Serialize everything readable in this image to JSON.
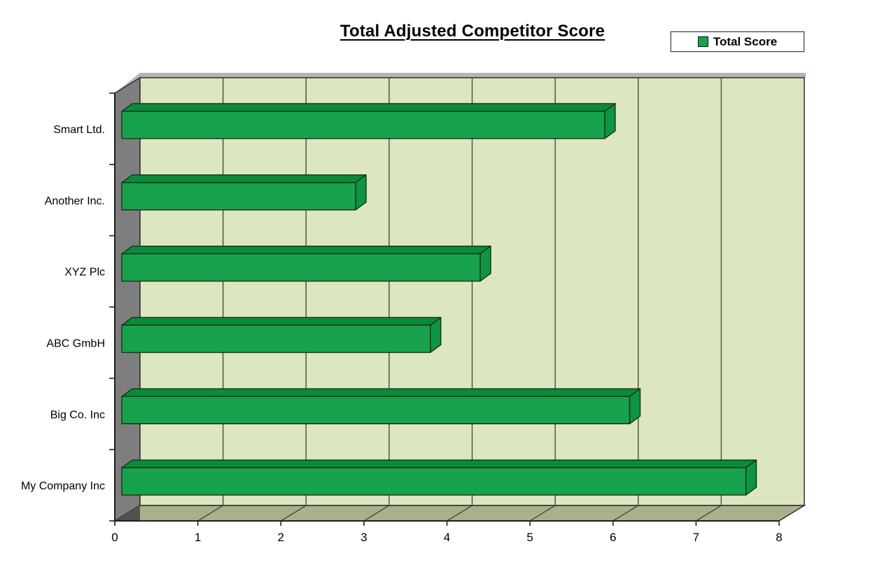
{
  "title": "Total Adjusted Competitor Score",
  "legend": {
    "items": [
      {
        "label": "Total Score",
        "color": "#18a24c"
      }
    ]
  },
  "chart_data": {
    "type": "bar",
    "orientation": "horizontal",
    "style": "3d",
    "title": "Total Adjusted Competitor Score",
    "categories": [
      "Smart Ltd.",
      "Another Inc.",
      "XYZ Plc",
      "ABC GmbH",
      "Big Co. Inc",
      "My Company Inc"
    ],
    "category_order": "top-to-bottom",
    "series": [
      {
        "name": "Total Score",
        "values": [
          5.9,
          2.9,
          4.4,
          3.8,
          6.2,
          7.6
        ]
      }
    ],
    "xlabel": "",
    "ylabel": "",
    "xlim": [
      0,
      8
    ],
    "xticks": [
      0,
      1,
      2,
      3,
      4,
      5,
      6,
      7,
      8
    ],
    "x_tick_labels": [
      "0",
      "1",
      "2",
      "3",
      "4",
      "5",
      "6",
      "7",
      "8"
    ],
    "grid": true,
    "legend_position": "top-right",
    "colors": {
      "bar_front": "#19a24d",
      "bar_top": "#0a8a3c",
      "bar_side": "#0d9445",
      "bar_outline": "#143317",
      "wall": "#dce6c1",
      "wall_top_sliver": "#b5b5b5",
      "floor": "#a9b18c",
      "side_wall": "#7e7e7e",
      "corner_shadow": "#525252",
      "gridline": "#474c40",
      "frame": "#2e2e2e",
      "axis_text": "#000000"
    }
  }
}
